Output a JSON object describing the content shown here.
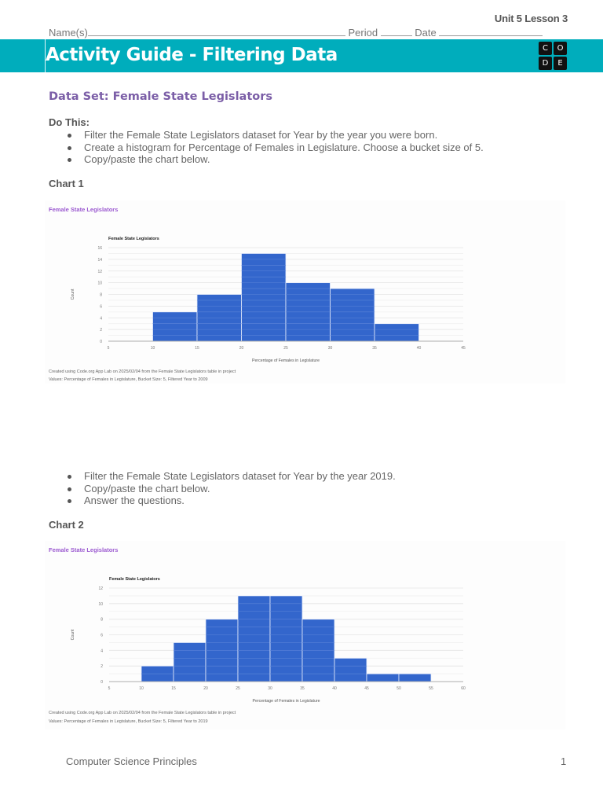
{
  "header": {
    "unit_lesson": "Unit 5 Lesson 3",
    "name_label": "Name(s)",
    "period_label": "Period",
    "date_label": "Date",
    "title": "Activity Guide - Filtering Data",
    "logo_letters": [
      "C",
      "O",
      "D",
      "E"
    ],
    "banner_color": "#00adbc"
  },
  "dataset_heading": "Data Set: Female State Legislators",
  "do_this": {
    "label": "Do This:",
    "items": [
      "Filter the Female State Legislators dataset for Year by the year you were born.",
      "Create a histogram for Percentage of Females in Legislature. Choose a bucket size of 5.",
      "Copy/paste the chart below."
    ]
  },
  "chart1_section": {
    "label": "Chart 1",
    "app_title": "Female State Legislators",
    "footer_line1": "Created using Code.org App Lab on 2025/02/04 from the Female State Legislators table in project",
    "footer_line2": "Values: Percentage of Females in Legislature, Bucket Size: 5, Filtered Year to 2009"
  },
  "second_steps": {
    "items": [
      "Filter the Female State Legislators dataset for Year by the year 2019.",
      "Copy/paste the chart below.",
      "Answer the questions."
    ]
  },
  "chart2_section": {
    "label": "Chart 2",
    "app_title": "Female State Legislators",
    "footer_line1": "Created using Code.org App Lab on 2025/02/04 from the Female State Legislators table in project",
    "footer_line2": "Values: Percentage of Females in Legislature, Bucket Size: 5, Filtered Year to 2019"
  },
  "footer": {
    "course": "Computer Science Principles",
    "page_number": "1"
  },
  "chart_data": [
    {
      "type": "bar",
      "title": "Female State Legislators",
      "xlabel": "Percentage of Females in Legislature",
      "ylabel": "Count",
      "bucket_size": 5,
      "categories": [
        "10-15",
        "15-20",
        "20-25",
        "25-30",
        "30-35",
        "35-40"
      ],
      "bins": [
        [
          10,
          15
        ],
        [
          15,
          20
        ],
        [
          20,
          25
        ],
        [
          25,
          30
        ],
        [
          30,
          35
        ],
        [
          35,
          40
        ]
      ],
      "values": [
        5,
        8,
        15,
        10,
        9,
        3
      ],
      "xlim": [
        5,
        45
      ],
      "xticks": [
        5,
        10,
        15,
        20,
        25,
        30,
        35,
        40,
        45
      ],
      "ylim": [
        0,
        16
      ],
      "yticks": [
        0,
        2,
        4,
        6,
        8,
        10,
        12,
        14,
        16
      ],
      "grid": true,
      "bar_color": "#3366cc",
      "filter": "Year = 2009"
    },
    {
      "type": "bar",
      "title": "Female State Legislators",
      "xlabel": "Percentage of Females in Legislature",
      "ylabel": "Count",
      "bucket_size": 5,
      "categories": [
        "10-15",
        "15-20",
        "20-25",
        "25-30",
        "30-35",
        "35-40",
        "40-45",
        "45-50",
        "50-55"
      ],
      "bins": [
        [
          10,
          15
        ],
        [
          15,
          20
        ],
        [
          20,
          25
        ],
        [
          25,
          30
        ],
        [
          30,
          35
        ],
        [
          35,
          40
        ],
        [
          40,
          45
        ],
        [
          45,
          50
        ],
        [
          50,
          55
        ]
      ],
      "values": [
        2,
        5,
        8,
        11,
        11,
        8,
        3,
        1,
        1
      ],
      "xlim": [
        5,
        60
      ],
      "xticks": [
        5,
        10,
        15,
        20,
        25,
        30,
        35,
        40,
        45,
        50,
        55,
        60
      ],
      "ylim": [
        0,
        12
      ],
      "yticks": [
        0,
        2,
        4,
        6,
        8,
        10,
        12
      ],
      "grid": true,
      "bar_color": "#3366cc",
      "filter": "Year = 2019"
    }
  ]
}
